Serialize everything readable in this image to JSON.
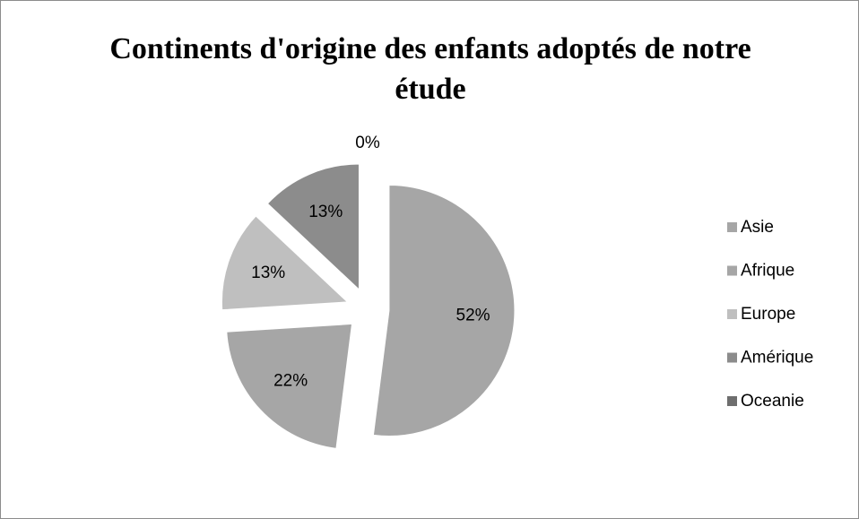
{
  "chart_data": {
    "type": "pie",
    "title": "Continents d'origine des enfants adoptés de notre étude",
    "categories": [
      "Asie",
      "Afrique",
      "Europe",
      "Amérique",
      "Oceanie"
    ],
    "values": [
      52,
      22,
      13,
      13,
      0
    ],
    "value_labels": [
      "52%",
      "22%",
      "13%",
      "13%",
      "0%"
    ],
    "colors": [
      "#a6a6a6",
      "#a6a6a6",
      "#bfbfbf",
      "#8c8c8c",
      "#6e6e6e"
    ],
    "legend": "right"
  }
}
